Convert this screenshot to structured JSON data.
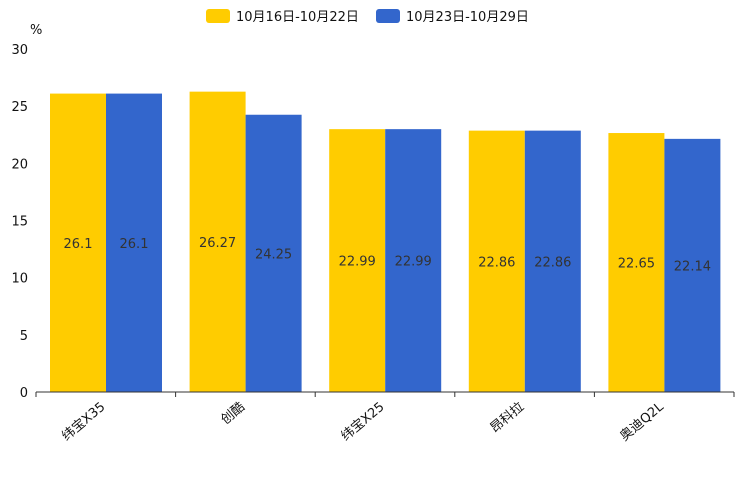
{
  "chart_data": {
    "type": "bar",
    "title": "",
    "ylabel": "%",
    "xlabel": "",
    "ylim": [
      0,
      30
    ],
    "yticks": [
      "0",
      "5",
      "10",
      "15",
      "20",
      "25",
      "30"
    ],
    "categories": [
      "纬宝X35",
      "创酷",
      "纬宝X25",
      "昂科拉",
      "奥迪Q2L"
    ],
    "series": [
      {
        "name": "10月16日-10月22日",
        "color": "#ffcc00",
        "values": [
          26.1,
          26.27,
          22.99,
          22.86,
          22.65
        ],
        "labels": [
          "26.1",
          "26.27",
          "22.99",
          "22.86",
          "22.65"
        ]
      },
      {
        "name": "10月23日-10月29日",
        "color": "#3366cc",
        "values": [
          26.1,
          24.25,
          22.99,
          22.86,
          22.14
        ],
        "labels": [
          "26.1",
          "24.25",
          "22.99",
          "22.86",
          "22.14"
        ]
      }
    ],
    "legend_position": "top-center",
    "grid": false
  }
}
